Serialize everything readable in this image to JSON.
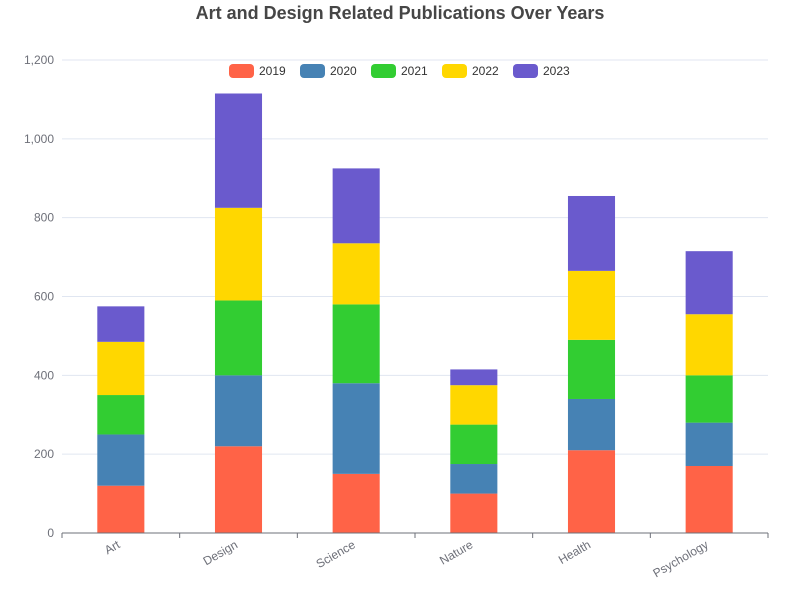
{
  "chart_data": {
    "type": "bar",
    "stacked": true,
    "title": "Art and Design Related Publications Over Years",
    "xlabel": "",
    "ylabel": "",
    "categories": [
      "Art",
      "Design",
      "Science",
      "Nature",
      "Health",
      "Psychology"
    ],
    "ylim": [
      0,
      1200
    ],
    "yticks": [
      "0",
      "200",
      "400",
      "600",
      "800",
      "1,000",
      "1,200"
    ],
    "ytick_values": [
      0,
      200,
      400,
      600,
      800,
      1000,
      1200
    ],
    "grid": true,
    "legend_position": "top-center",
    "series": [
      {
        "name": "2019",
        "color": "#ff6347",
        "values": [
          120,
          220,
          150,
          100,
          210,
          170
        ]
      },
      {
        "name": "2020",
        "color": "#4682b4",
        "values": [
          130,
          180,
          230,
          75,
          130,
          110
        ]
      },
      {
        "name": "2021",
        "color": "#32cd32",
        "values": [
          100,
          190,
          200,
          100,
          150,
          120
        ]
      },
      {
        "name": "2022",
        "color": "#ffd700",
        "values": [
          135,
          235,
          155,
          100,
          175,
          155
        ]
      },
      {
        "name": "2023",
        "color": "#6a5acd",
        "values": [
          90,
          290,
          190,
          40,
          190,
          160
        ]
      }
    ]
  }
}
